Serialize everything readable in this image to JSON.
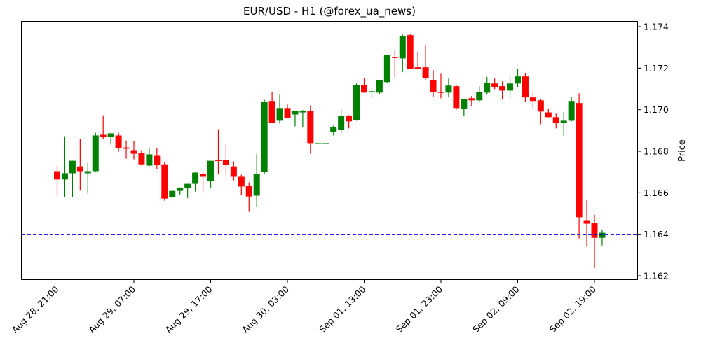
{
  "chart_data": {
    "type": "candlestick",
    "title": "EUR/USD - H1 (@forex_ua_news)",
    "xlabel": "",
    "ylabel": "Price",
    "ylim": [
      1.1618,
      1.1743
    ],
    "y_ticks": [
      "1.162",
      "1.164",
      "1.166",
      "1.168",
      "1.170",
      "1.172",
      "1.174"
    ],
    "x_ticks": [
      {
        "label": "Aug 28, 21:00",
        "index": 0
      },
      {
        "label": "Aug 29, 07:00",
        "index": 10
      },
      {
        "label": "Aug 29, 17:00",
        "index": 20
      },
      {
        "label": "Aug 30, 03:00",
        "index": 30
      },
      {
        "label": "Sep 01, 13:00",
        "index": 40
      },
      {
        "label": "Sep 01, 23:00",
        "index": 50
      },
      {
        "label": "Sep 02, 09:00",
        "index": 60
      },
      {
        "label": "Sep 02, 19:00",
        "index": 70
      }
    ],
    "grid": false,
    "hline": {
      "value": 1.164,
      "color": "#0000ff",
      "style": "dashed"
    },
    "colors": {
      "up": "#008000",
      "down": "#ff0000"
    },
    "candles_ohlc": [
      [
        1.16704,
        1.16734,
        1.16586,
        1.16664
      ],
      [
        1.16664,
        1.16872,
        1.1658,
        1.16694
      ],
      [
        1.16694,
        1.16754,
        1.1658,
        1.16754
      ],
      [
        1.16727,
        1.16858,
        1.1661,
        1.16704
      ],
      [
        1.16694,
        1.16744,
        1.16596,
        1.16704
      ],
      [
        1.16704,
        1.16889,
        1.167,
        1.16876
      ],
      [
        1.16879,
        1.16973,
        1.16859,
        1.16869
      ],
      [
        1.16869,
        1.16889,
        1.16832,
        1.16886
      ],
      [
        1.16876,
        1.16889,
        1.16798,
        1.16815
      ],
      [
        1.16818,
        1.16852,
        1.16764,
        1.16812
      ],
      [
        1.16805,
        1.16849,
        1.16761,
        1.16788
      ],
      [
        1.16791,
        1.16805,
        1.16731,
        1.16737
      ],
      [
        1.16731,
        1.16818,
        1.16727,
        1.16785
      ],
      [
        1.16778,
        1.16815,
        1.16714,
        1.16734
      ],
      [
        1.16737,
        1.16747,
        1.16562,
        1.16572
      ],
      [
        1.16579,
        1.16613,
        1.16575,
        1.16609
      ],
      [
        1.16609,
        1.16626,
        1.16592,
        1.16623
      ],
      [
        1.16623,
        1.16643,
        1.16575,
        1.16643
      ],
      [
        1.16643,
        1.167,
        1.16606,
        1.16697
      ],
      [
        1.1669,
        1.16704,
        1.16603,
        1.16677
      ],
      [
        1.16657,
        1.16754,
        1.16623,
        1.16754
      ],
      [
        1.16758,
        1.16906,
        1.1669,
        1.16754
      ],
      [
        1.16758,
        1.16832,
        1.1669,
        1.16734
      ],
      [
        1.16727,
        1.16751,
        1.1666,
        1.16677
      ],
      [
        1.16677,
        1.16687,
        1.16589,
        1.1663
      ],
      [
        1.16633,
        1.1665,
        1.16508,
        1.16582
      ],
      [
        1.16586,
        1.16788,
        1.16532,
        1.1669
      ],
      [
        1.167,
        1.17048,
        1.1669,
        1.17038
      ],
      [
        1.17042,
        1.17086,
        1.16994,
        1.16937
      ],
      [
        1.16947,
        1.17072,
        1.16933,
        1.17008
      ],
      [
        1.17008,
        1.17025,
        1.1697,
        1.16961
      ],
      [
        1.16977,
        1.16987,
        1.1692,
        1.16994
      ],
      [
        1.16987,
        1.16998,
        1.16917,
        1.16994
      ],
      [
        1.16994,
        1.17021,
        1.16788,
        1.16839
      ],
      [
        1.16839,
        1.16839,
        1.16839,
        1.16839
      ],
      [
        1.16839,
        1.16839,
        1.16839,
        1.16839
      ],
      [
        1.16893,
        1.16923,
        1.16876,
        1.16917
      ],
      [
        1.16903,
        1.17001,
        1.16886,
        1.16971
      ],
      [
        1.16971,
        1.16974,
        1.1691,
        1.16944
      ],
      [
        1.1695,
        1.17126,
        1.16947,
        1.17119
      ],
      [
        1.17119,
        1.1715,
        1.17082,
        1.17082
      ],
      [
        1.17086,
        1.17103,
        1.17055,
        1.17089
      ],
      [
        1.17082,
        1.17136,
        1.17075,
        1.17143
      ],
      [
        1.17133,
        1.17264,
        1.17129,
        1.17264
      ],
      [
        1.17254,
        1.17285,
        1.17156,
        1.17251
      ],
      [
        1.17247,
        1.17362,
        1.1718,
        1.17355
      ],
      [
        1.17359,
        1.17365,
        1.17197,
        1.17197
      ],
      [
        1.17204,
        1.17278,
        1.17194,
        1.17197
      ],
      [
        1.17204,
        1.17312,
        1.1714,
        1.17153
      ],
      [
        1.17143,
        1.1719,
        1.17062,
        1.17086
      ],
      [
        1.17086,
        1.17173,
        1.17055,
        1.17082
      ],
      [
        1.17082,
        1.1715,
        1.17059,
        1.17116
      ],
      [
        1.17113,
        1.1712,
        1.17001,
        1.17008
      ],
      [
        1.17004,
        1.17042,
        1.16971,
        1.17052
      ],
      [
        1.17055,
        1.17066,
        1.17018,
        1.17045
      ],
      [
        1.17045,
        1.17113,
        1.17038,
        1.17086
      ],
      [
        1.17082,
        1.17157,
        1.17072,
        1.17129
      ],
      [
        1.17126,
        1.1715,
        1.17099,
        1.17109
      ],
      [
        1.17113,
        1.17136,
        1.17052,
        1.17092
      ],
      [
        1.17092,
        1.17163,
        1.17055,
        1.17126
      ],
      [
        1.17126,
        1.17197,
        1.17109,
        1.1716
      ],
      [
        1.1716,
        1.17177,
        1.17038,
        1.17059
      ],
      [
        1.17059,
        1.17089,
        1.17008,
        1.17042
      ],
      [
        1.17045,
        1.17052,
        1.1693,
        1.16991
      ],
      [
        1.16987,
        1.17004,
        1.16964,
        1.16964
      ],
      [
        1.16964,
        1.16981,
        1.1691,
        1.16937
      ],
      [
        1.16937,
        1.16987,
        1.16876,
        1.16947
      ],
      [
        1.16947,
        1.17059,
        1.16943,
        1.17042
      ],
      [
        1.17032,
        1.17079,
        1.1638,
        1.16482
      ],
      [
        1.16468,
        1.16566,
        1.1634,
        1.16451
      ],
      [
        1.16454,
        1.16495,
        1.16236,
        1.16383
      ],
      [
        1.16383,
        1.1642,
        1.16346,
        1.16407
      ]
    ]
  }
}
